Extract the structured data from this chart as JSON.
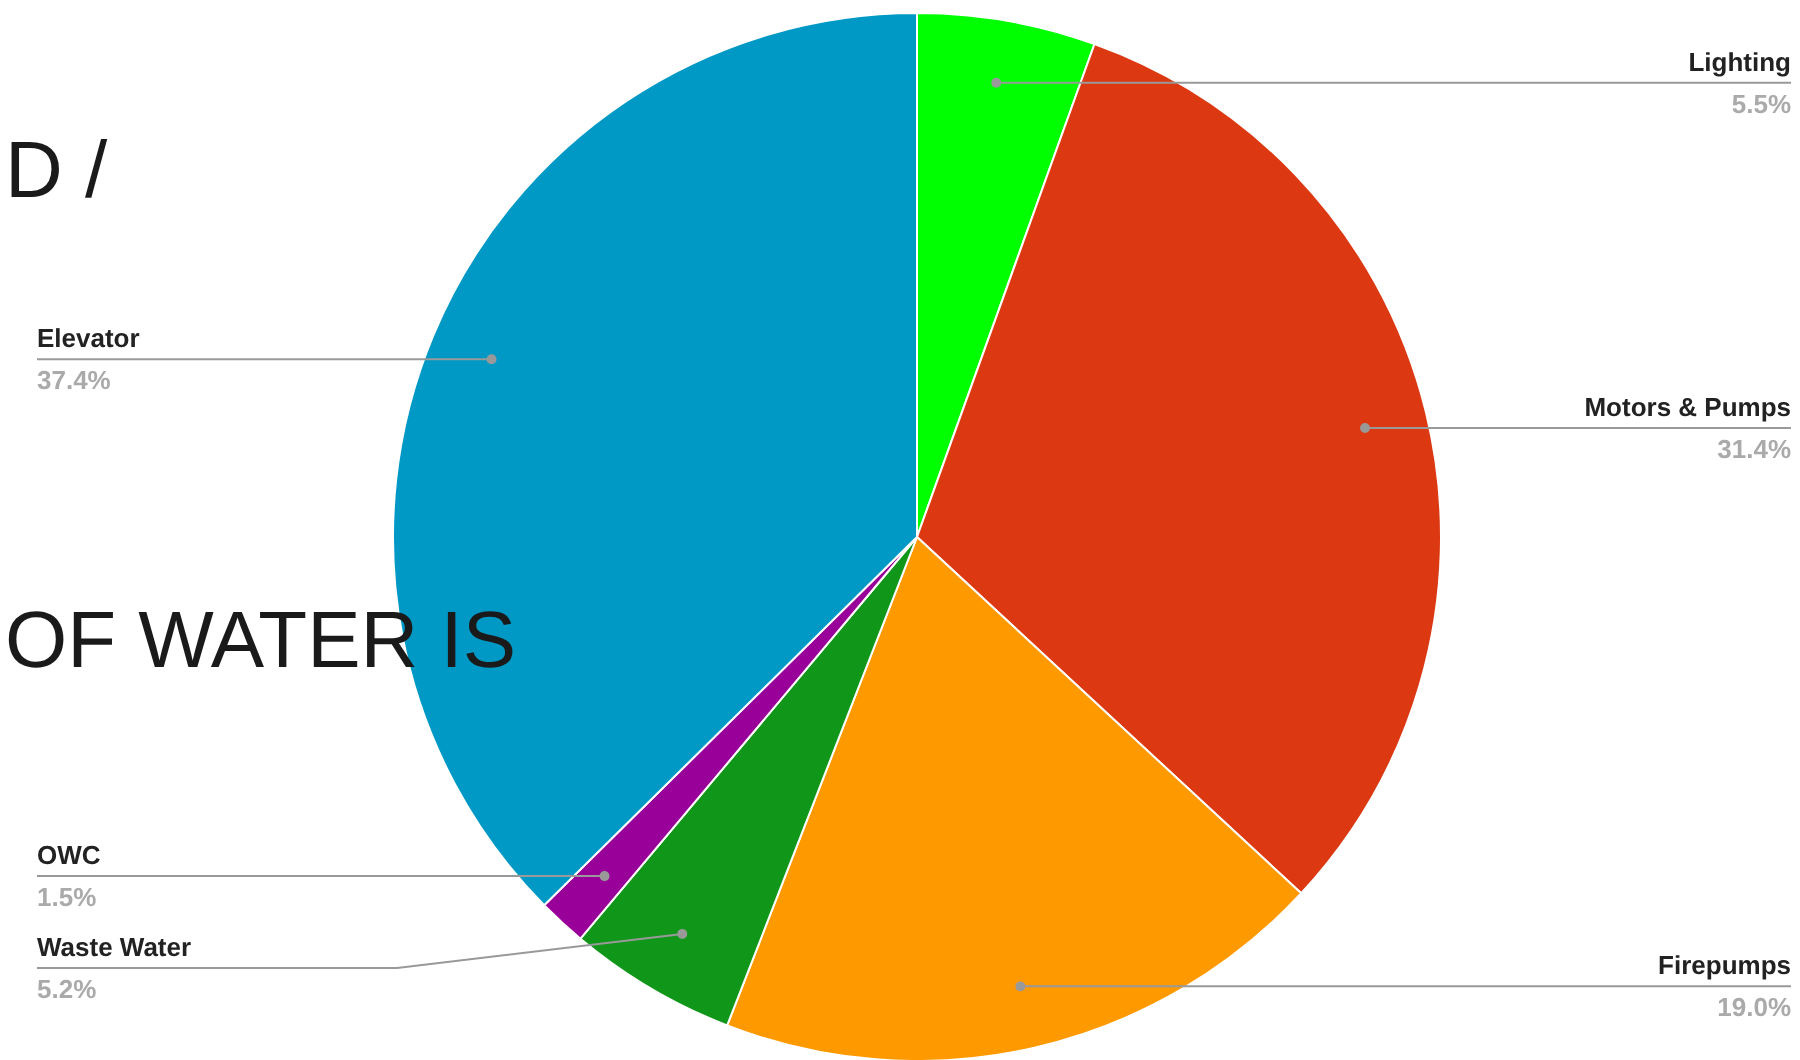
{
  "chart_data": {
    "type": "pie",
    "categories": [
      "Lighting",
      "Motors & Pumps",
      "Firepumps",
      "Waste Water",
      "OWC",
      "Elevator"
    ],
    "values": [
      5.5,
      31.4,
      19.0,
      5.2,
      1.5,
      37.4
    ],
    "colors": [
      "#00ff00",
      "#dc3912",
      "#ff9900",
      "#109618",
      "#990099",
      "#0099c6"
    ],
    "value_labels": [
      "5.5%",
      "31.4%",
      "19.0%",
      "5.2%",
      "1.5%",
      "37.4%"
    ],
    "annotations": [
      "D /",
      "OF WATER IS"
    ]
  }
}
